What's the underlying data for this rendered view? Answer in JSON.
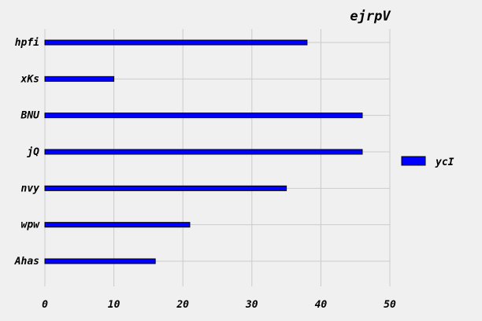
{
  "chart_data": {
    "type": "bar",
    "orientation": "horizontal",
    "title": "ejrpV",
    "xlabel": "",
    "ylabel": "",
    "categories": [
      "hpfi",
      "xKs",
      "BNU",
      "jQ",
      "nvy",
      "wpw",
      "Ahas"
    ],
    "series": [
      {
        "name": "ycI",
        "values": [
          38,
          10,
          46,
          46,
          35,
          21,
          16
        ],
        "color": "#0000ff",
        "edge_color": "#000000"
      }
    ],
    "xlim": [
      0,
      50
    ],
    "xticks": [
      "0",
      "10",
      "20",
      "30",
      "40",
      "50"
    ],
    "grid": true,
    "legend_position": "right"
  }
}
